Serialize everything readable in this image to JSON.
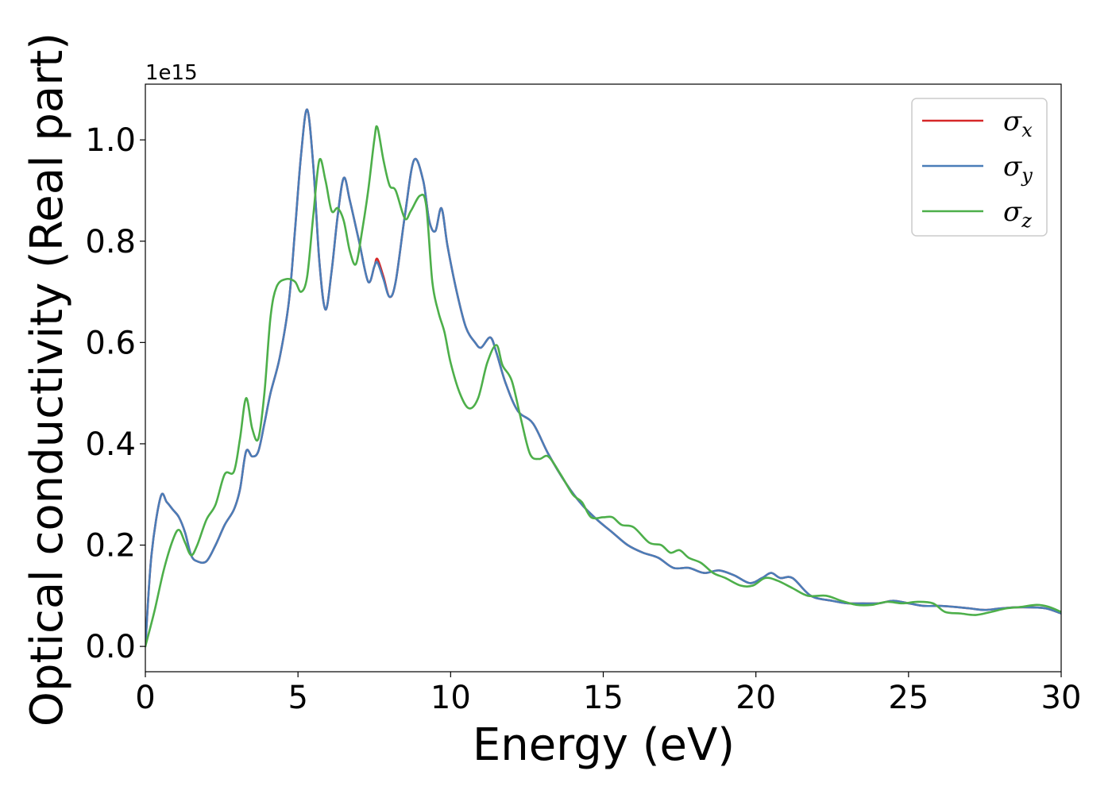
{
  "chart_data": {
    "type": "line",
    "title": "",
    "xlabel": "Energy (eV)",
    "ylabel": "Optical conductivity (Real part)",
    "y_offset_label": "1e15",
    "xlim": [
      0,
      30
    ],
    "ylim": [
      -0.05,
      1.11
    ],
    "x_ticks": [
      0,
      5,
      10,
      15,
      20,
      25,
      30
    ],
    "x_tick_labels": [
      "0",
      "5",
      "10",
      "15",
      "20",
      "25",
      "30"
    ],
    "y_ticks": [
      0.0,
      0.2,
      0.4,
      0.6,
      0.8,
      1.0
    ],
    "y_tick_labels": [
      "0.0",
      "0.2",
      "0.4",
      "0.6",
      "0.8",
      "1.0"
    ],
    "grid": false,
    "legend_position": "top-right",
    "series": [
      {
        "name": "σ",
        "subscript": "x",
        "color": "#d62728",
        "points": [
          [
            0,
            0
          ],
          [
            0.2,
            0.18
          ],
          [
            0.5,
            0.295
          ],
          [
            0.7,
            0.285
          ],
          [
            0.9,
            0.27
          ],
          [
            1.1,
            0.255
          ],
          [
            1.3,
            0.225
          ],
          [
            1.5,
            0.18
          ],
          [
            1.7,
            0.168
          ],
          [
            2,
            0.168
          ],
          [
            2.3,
            0.2
          ],
          [
            2.6,
            0.24
          ],
          [
            2.9,
            0.27
          ],
          [
            3.1,
            0.31
          ],
          [
            3.3,
            0.385
          ],
          [
            3.5,
            0.375
          ],
          [
            3.7,
            0.385
          ],
          [
            3.9,
            0.44
          ],
          [
            4.1,
            0.5
          ],
          [
            4.4,
            0.57
          ],
          [
            4.7,
            0.68
          ],
          [
            4.9,
            0.82
          ],
          [
            5.1,
            0.97
          ],
          [
            5.3,
            1.06
          ],
          [
            5.5,
            0.95
          ],
          [
            5.7,
            0.76
          ],
          [
            5.9,
            0.665
          ],
          [
            6.1,
            0.74
          ],
          [
            6.3,
            0.85
          ],
          [
            6.5,
            0.925
          ],
          [
            6.7,
            0.88
          ],
          [
            7.0,
            0.8
          ],
          [
            7.3,
            0.72
          ],
          [
            7.5,
            0.75
          ],
          [
            7.6,
            0.765
          ],
          [
            7.8,
            0.73
          ],
          [
            8.0,
            0.69
          ],
          [
            8.2,
            0.72
          ],
          [
            8.5,
            0.85
          ],
          [
            8.8,
            0.96
          ],
          [
            9.1,
            0.92
          ],
          [
            9.3,
            0.84
          ],
          [
            9.5,
            0.82
          ],
          [
            9.7,
            0.865
          ],
          [
            9.9,
            0.79
          ],
          [
            10.2,
            0.7
          ],
          [
            10.5,
            0.63
          ],
          [
            10.8,
            0.6
          ],
          [
            11.0,
            0.59
          ],
          [
            11.3,
            0.61
          ],
          [
            11.5,
            0.58
          ],
          [
            11.8,
            0.52
          ],
          [
            12.2,
            0.465
          ],
          [
            12.7,
            0.44
          ],
          [
            13.2,
            0.38
          ],
          [
            13.8,
            0.32
          ],
          [
            14.3,
            0.28
          ],
          [
            14.8,
            0.25
          ],
          [
            15.3,
            0.225
          ],
          [
            15.8,
            0.2
          ],
          [
            16.3,
            0.185
          ],
          [
            16.8,
            0.175
          ],
          [
            17.3,
            0.155
          ],
          [
            17.8,
            0.155
          ],
          [
            18.3,
            0.145
          ],
          [
            18.8,
            0.15
          ],
          [
            19.3,
            0.14
          ],
          [
            19.8,
            0.125
          ],
          [
            20.2,
            0.135
          ],
          [
            20.5,
            0.145
          ],
          [
            20.8,
            0.135
          ],
          [
            21.2,
            0.135
          ],
          [
            21.8,
            0.1
          ],
          [
            22.5,
            0.09
          ],
          [
            23.0,
            0.085
          ],
          [
            23.5,
            0.085
          ],
          [
            24.0,
            0.085
          ],
          [
            24.5,
            0.09
          ],
          [
            25.0,
            0.085
          ],
          [
            25.5,
            0.08
          ],
          [
            26.0,
            0.08
          ],
          [
            26.5,
            0.078
          ],
          [
            27.0,
            0.075
          ],
          [
            27.5,
            0.072
          ],
          [
            28.0,
            0.075
          ],
          [
            28.5,
            0.077
          ],
          [
            29.0,
            0.077
          ],
          [
            29.5,
            0.075
          ],
          [
            30,
            0.065
          ]
        ]
      },
      {
        "name": "σ",
        "subscript": "y",
        "color": "#4a7db8",
        "points": [
          [
            0,
            0
          ],
          [
            0.2,
            0.18
          ],
          [
            0.5,
            0.295
          ],
          [
            0.7,
            0.285
          ],
          [
            0.9,
            0.27
          ],
          [
            1.1,
            0.255
          ],
          [
            1.3,
            0.225
          ],
          [
            1.5,
            0.18
          ],
          [
            1.7,
            0.168
          ],
          [
            2,
            0.168
          ],
          [
            2.3,
            0.2
          ],
          [
            2.6,
            0.24
          ],
          [
            2.9,
            0.27
          ],
          [
            3.1,
            0.31
          ],
          [
            3.3,
            0.385
          ],
          [
            3.5,
            0.375
          ],
          [
            3.7,
            0.385
          ],
          [
            3.9,
            0.44
          ],
          [
            4.1,
            0.5
          ],
          [
            4.4,
            0.57
          ],
          [
            4.7,
            0.68
          ],
          [
            4.9,
            0.82
          ],
          [
            5.1,
            0.97
          ],
          [
            5.3,
            1.06
          ],
          [
            5.5,
            0.95
          ],
          [
            5.7,
            0.76
          ],
          [
            5.9,
            0.665
          ],
          [
            6.1,
            0.74
          ],
          [
            6.3,
            0.85
          ],
          [
            6.5,
            0.925
          ],
          [
            6.7,
            0.88
          ],
          [
            7.0,
            0.8
          ],
          [
            7.3,
            0.72
          ],
          [
            7.5,
            0.75
          ],
          [
            7.6,
            0.758
          ],
          [
            7.8,
            0.725
          ],
          [
            8.0,
            0.69
          ],
          [
            8.2,
            0.72
          ],
          [
            8.5,
            0.85
          ],
          [
            8.8,
            0.96
          ],
          [
            9.1,
            0.92
          ],
          [
            9.3,
            0.84
          ],
          [
            9.5,
            0.82
          ],
          [
            9.7,
            0.865
          ],
          [
            9.9,
            0.79
          ],
          [
            10.2,
            0.7
          ],
          [
            10.5,
            0.63
          ],
          [
            10.8,
            0.6
          ],
          [
            11.0,
            0.59
          ],
          [
            11.3,
            0.61
          ],
          [
            11.5,
            0.58
          ],
          [
            11.8,
            0.52
          ],
          [
            12.2,
            0.465
          ],
          [
            12.7,
            0.44
          ],
          [
            13.2,
            0.38
          ],
          [
            13.8,
            0.32
          ],
          [
            14.3,
            0.28
          ],
          [
            14.8,
            0.25
          ],
          [
            15.3,
            0.225
          ],
          [
            15.8,
            0.2
          ],
          [
            16.3,
            0.185
          ],
          [
            16.8,
            0.175
          ],
          [
            17.3,
            0.155
          ],
          [
            17.8,
            0.155
          ],
          [
            18.3,
            0.145
          ],
          [
            18.8,
            0.15
          ],
          [
            19.3,
            0.14
          ],
          [
            19.8,
            0.125
          ],
          [
            20.2,
            0.135
          ],
          [
            20.5,
            0.145
          ],
          [
            20.8,
            0.135
          ],
          [
            21.2,
            0.135
          ],
          [
            21.8,
            0.1
          ],
          [
            22.5,
            0.09
          ],
          [
            23.0,
            0.085
          ],
          [
            23.5,
            0.085
          ],
          [
            24.0,
            0.085
          ],
          [
            24.5,
            0.09
          ],
          [
            25.0,
            0.085
          ],
          [
            25.5,
            0.08
          ],
          [
            26.0,
            0.08
          ],
          [
            26.5,
            0.078
          ],
          [
            27.0,
            0.075
          ],
          [
            27.5,
            0.072
          ],
          [
            28.0,
            0.075
          ],
          [
            28.5,
            0.077
          ],
          [
            29.0,
            0.077
          ],
          [
            29.5,
            0.075
          ],
          [
            30,
            0.065
          ]
        ]
      },
      {
        "name": "σ",
        "subscript": "z",
        "color": "#4daf4a",
        "points": [
          [
            0,
            0
          ],
          [
            0.3,
            0.07
          ],
          [
            0.6,
            0.15
          ],
          [
            0.9,
            0.21
          ],
          [
            1.1,
            0.23
          ],
          [
            1.3,
            0.205
          ],
          [
            1.5,
            0.18
          ],
          [
            1.7,
            0.2
          ],
          [
            2.0,
            0.25
          ],
          [
            2.3,
            0.28
          ],
          [
            2.6,
            0.34
          ],
          [
            2.9,
            0.345
          ],
          [
            3.1,
            0.41
          ],
          [
            3.3,
            0.49
          ],
          [
            3.5,
            0.43
          ],
          [
            3.7,
            0.41
          ],
          [
            3.9,
            0.5
          ],
          [
            4.1,
            0.65
          ],
          [
            4.3,
            0.71
          ],
          [
            4.6,
            0.725
          ],
          [
            4.9,
            0.72
          ],
          [
            5.1,
            0.7
          ],
          [
            5.3,
            0.73
          ],
          [
            5.5,
            0.85
          ],
          [
            5.7,
            0.96
          ],
          [
            5.9,
            0.92
          ],
          [
            6.1,
            0.86
          ],
          [
            6.3,
            0.865
          ],
          [
            6.5,
            0.84
          ],
          [
            6.7,
            0.78
          ],
          [
            6.9,
            0.755
          ],
          [
            7.1,
            0.82
          ],
          [
            7.3,
            0.9
          ],
          [
            7.5,
            1.0
          ],
          [
            7.6,
            1.025
          ],
          [
            7.8,
            0.96
          ],
          [
            8.0,
            0.91
          ],
          [
            8.2,
            0.9
          ],
          [
            8.5,
            0.845
          ],
          [
            8.7,
            0.86
          ],
          [
            9.0,
            0.89
          ],
          [
            9.2,
            0.87
          ],
          [
            9.4,
            0.72
          ],
          [
            9.6,
            0.66
          ],
          [
            9.8,
            0.62
          ],
          [
            10.0,
            0.56
          ],
          [
            10.3,
            0.5
          ],
          [
            10.6,
            0.47
          ],
          [
            10.9,
            0.49
          ],
          [
            11.2,
            0.56
          ],
          [
            11.5,
            0.595
          ],
          [
            11.7,
            0.555
          ],
          [
            12.0,
            0.525
          ],
          [
            12.3,
            0.45
          ],
          [
            12.6,
            0.38
          ],
          [
            12.9,
            0.37
          ],
          [
            13.2,
            0.375
          ],
          [
            13.6,
            0.34
          ],
          [
            14.0,
            0.3
          ],
          [
            14.3,
            0.285
          ],
          [
            14.6,
            0.255
          ],
          [
            15.0,
            0.255
          ],
          [
            15.3,
            0.255
          ],
          [
            15.6,
            0.24
          ],
          [
            16.0,
            0.235
          ],
          [
            16.5,
            0.205
          ],
          [
            16.9,
            0.2
          ],
          [
            17.2,
            0.185
          ],
          [
            17.5,
            0.19
          ],
          [
            17.8,
            0.175
          ],
          [
            18.2,
            0.165
          ],
          [
            18.6,
            0.145
          ],
          [
            19.0,
            0.135
          ],
          [
            19.5,
            0.12
          ],
          [
            19.9,
            0.12
          ],
          [
            20.3,
            0.135
          ],
          [
            20.7,
            0.13
          ],
          [
            21.2,
            0.115
          ],
          [
            21.7,
            0.1
          ],
          [
            22.3,
            0.1
          ],
          [
            22.8,
            0.09
          ],
          [
            23.3,
            0.082
          ],
          [
            23.8,
            0.082
          ],
          [
            24.3,
            0.088
          ],
          [
            24.8,
            0.085
          ],
          [
            25.3,
            0.088
          ],
          [
            25.8,
            0.085
          ],
          [
            26.2,
            0.068
          ],
          [
            26.7,
            0.065
          ],
          [
            27.2,
            0.062
          ],
          [
            27.7,
            0.068
          ],
          [
            28.2,
            0.075
          ],
          [
            28.7,
            0.078
          ],
          [
            29.2,
            0.082
          ],
          [
            29.6,
            0.078
          ],
          [
            30,
            0.068
          ]
        ]
      }
    ]
  }
}
